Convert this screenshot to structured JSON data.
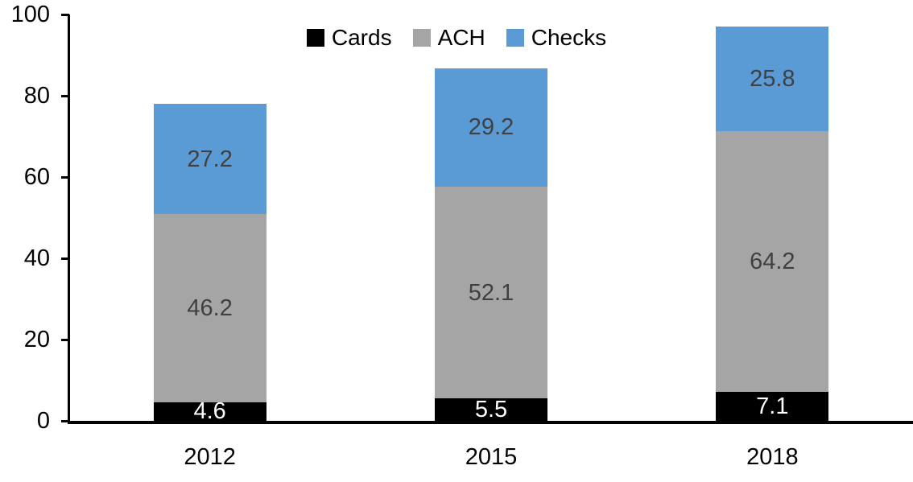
{
  "chart_data": {
    "type": "bar",
    "stacked": true,
    "title": "",
    "xlabel": "",
    "ylabel": "",
    "categories": [
      "2012",
      "2015",
      "2018"
    ],
    "series": [
      {
        "name": "Cards",
        "color": "#000000",
        "label_color": "#ffffff",
        "values": [
          4.6,
          5.5,
          7.1
        ]
      },
      {
        "name": "ACH",
        "color": "#a5a5a5",
        "label_color": "#404040",
        "values": [
          46.2,
          52.1,
          64.2
        ]
      },
      {
        "name": "Checks",
        "color": "#5b9bd5",
        "label_color": "#404040",
        "values": [
          27.2,
          29.2,
          25.8
        ]
      }
    ],
    "ylim": [
      0,
      100
    ],
    "yticks": [
      0,
      20,
      40,
      60,
      80,
      100
    ],
    "grid": false,
    "legend": {
      "position": "top-center",
      "entries": [
        "Cards",
        "ACH",
        "Checks"
      ]
    },
    "axis_color": "#000000",
    "background": "#ffffff"
  }
}
